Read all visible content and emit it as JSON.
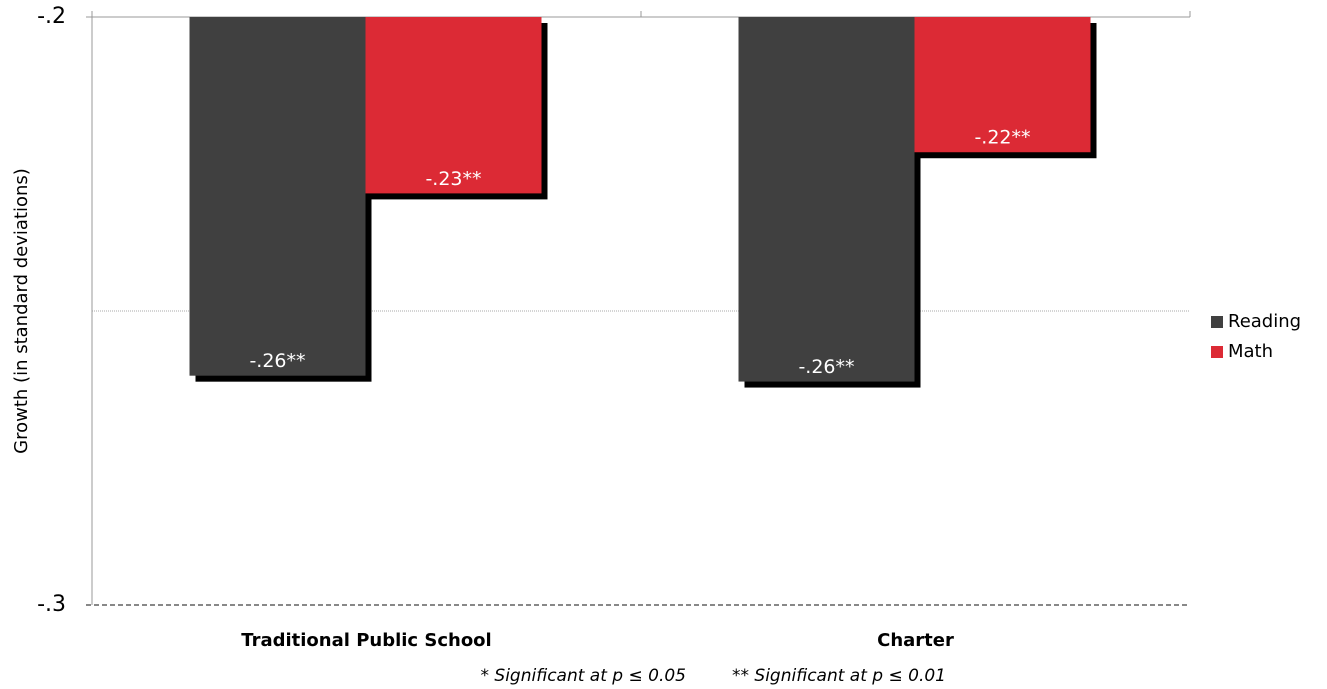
{
  "chart_data": {
    "type": "bar",
    "y_label": "Growth (in standard deviations)",
    "categories": [
      "Traditional Public School",
      "Charter"
    ],
    "series": [
      {
        "name": "Reading",
        "color": "#404040",
        "values": [
          -0.261,
          -0.262
        ],
        "value_labels": [
          "-.26**",
          "-.26**"
        ]
      },
      {
        "name": "Math",
        "color": "#dc2a35",
        "values": [
          -0.23,
          -0.223
        ],
        "value_labels": [
          "-.23**",
          "-.22**"
        ]
      }
    ],
    "ylim": [
      -0.3,
      -0.2
    ],
    "yticks": [
      {
        "value": -0.3,
        "label": "-.3"
      },
      {
        "value": -0.2,
        "label": "-.2"
      }
    ],
    "minor_gridlines": [
      -0.25
    ],
    "legend": "right",
    "notes": [
      "* Significant at p ≤ 0.05",
      "** Significant at p ≤ 0.01"
    ]
  }
}
